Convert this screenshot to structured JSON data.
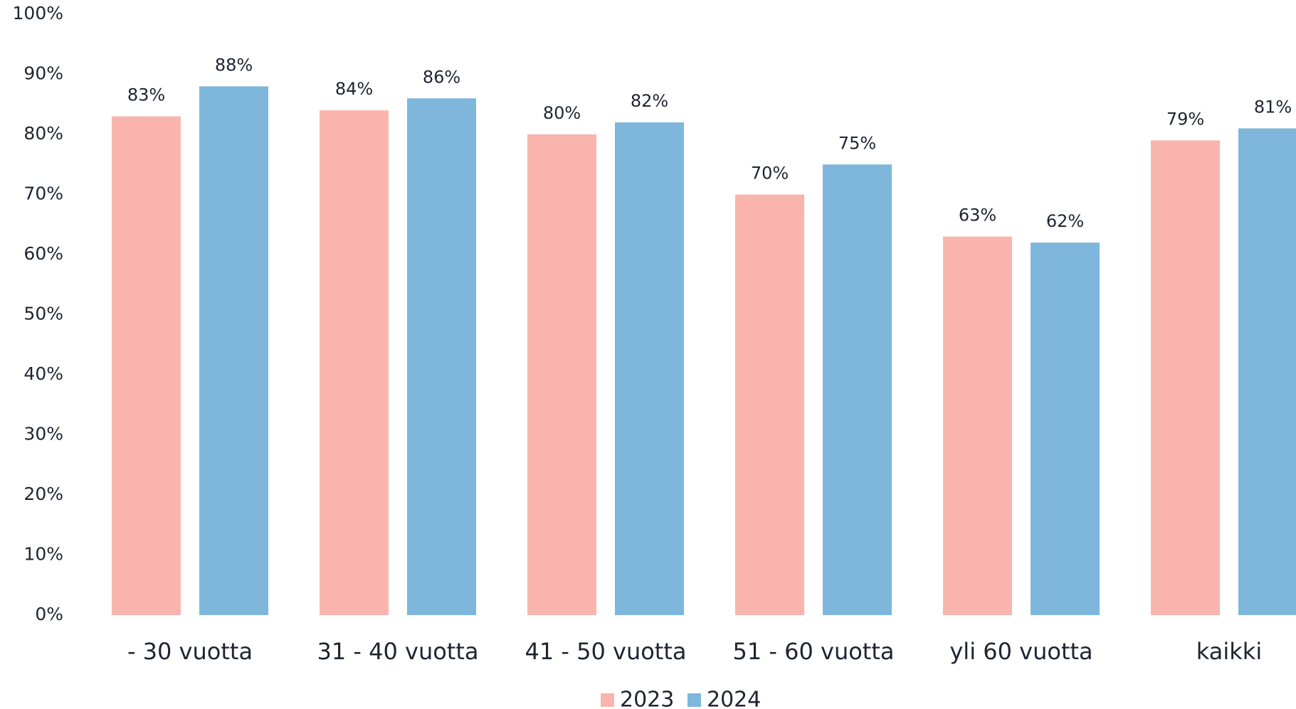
{
  "chart_data": {
    "type": "bar",
    "categories": [
      "- 30 vuotta",
      "31 - 40 vuotta",
      "41 - 50 vuotta",
      "51 - 60 vuotta",
      "yli 60 vuotta",
      "kaikki"
    ],
    "series": [
      {
        "name": "2023",
        "color": "#fab4ae",
        "values": [
          83,
          84,
          80,
          70,
          63,
          79
        ],
        "value_labels": [
          "83%",
          "84%",
          "80%",
          "70%",
          "63%",
          "79%"
        ]
      },
      {
        "name": "2024",
        "color": "#7eb7db",
        "values": [
          88,
          86,
          82,
          75,
          62,
          81
        ],
        "value_labels": [
          "88%",
          "86%",
          "82%",
          "75%",
          "62%",
          "81%"
        ]
      }
    ],
    "ylim": [
      0,
      100
    ],
    "yticks": [
      {
        "value": 0,
        "label": "0%"
      },
      {
        "value": 10,
        "label": "10%"
      },
      {
        "value": 20,
        "label": "20%"
      },
      {
        "value": 30,
        "label": "30%"
      },
      {
        "value": 40,
        "label": "40%"
      },
      {
        "value": 50,
        "label": "50%"
      },
      {
        "value": 60,
        "label": "60%"
      },
      {
        "value": 70,
        "label": "70%"
      },
      {
        "value": 80,
        "label": "80%"
      },
      {
        "value": 90,
        "label": "90%"
      },
      {
        "value": 100,
        "label": "100%"
      }
    ],
    "grid": false,
    "legend": "bottom"
  }
}
